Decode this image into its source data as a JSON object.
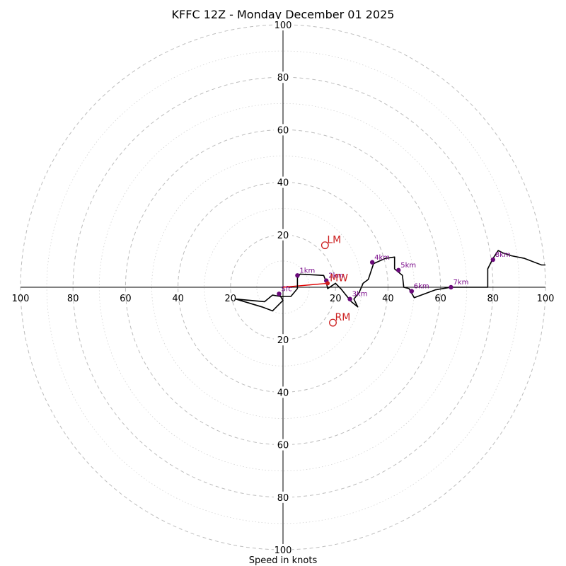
{
  "chart_data": {
    "type": "hodograph",
    "title": "KFFC 12Z - Monday December 01 2025",
    "xlabel": "Speed in knots",
    "range": [
      -100,
      100
    ],
    "ring_major_step": 20,
    "ring_minor_step": 10,
    "tick_labels": {
      "right": [
        "20",
        "40",
        "60",
        "80",
        "100"
      ],
      "left": [
        "20",
        "40",
        "60",
        "80",
        "100"
      ],
      "up": [
        "20",
        "40",
        "60",
        "80",
        "100"
      ],
      "down": [
        "20",
        "40",
        "60",
        "80",
        "100"
      ]
    },
    "trace": [
      [
        -1.5,
        -2.5
      ],
      [
        0,
        -5
      ],
      [
        -4,
        -9
      ],
      [
        -8,
        -7.5
      ],
      [
        -18,
        -4.5
      ],
      [
        -7,
        -5.5
      ],
      [
        -4,
        -3
      ],
      [
        -1,
        -3.5
      ],
      [
        3,
        -3.5
      ],
      [
        5.5,
        -0.5
      ],
      [
        5.5,
        3.5
      ],
      [
        6.5,
        5
      ],
      [
        15.5,
        4.5
      ],
      [
        16.5,
        2
      ],
      [
        17,
        -0.5
      ],
      [
        20,
        1.5
      ],
      [
        22,
        -0.5
      ],
      [
        26,
        -5.5
      ],
      [
        28.5,
        -7.5
      ],
      [
        27,
        -4.5
      ],
      [
        29,
        -2
      ],
      [
        30.5,
        1.5
      ],
      [
        32.5,
        3
      ],
      [
        33.5,
        6
      ],
      [
        34.5,
        9
      ],
      [
        39,
        11
      ],
      [
        42.5,
        11.5
      ],
      [
        42.5,
        7
      ],
      [
        45.5,
        4.5
      ],
      [
        46,
        0
      ],
      [
        48,
        -0.5
      ],
      [
        50,
        -4
      ],
      [
        58,
        -1
      ],
      [
        64,
        0
      ],
      [
        68,
        0
      ],
      [
        78,
        0
      ],
      [
        78,
        7
      ],
      [
        80,
        11
      ],
      [
        82,
        14
      ],
      [
        84,
        13
      ],
      [
        87,
        12
      ],
      [
        92,
        11
      ],
      [
        98.5,
        8.5
      ],
      [
        100,
        8.5
      ]
    ],
    "height_markers": [
      {
        "label": "Sfc",
        "u": -1.5,
        "v": -2.5
      },
      {
        "label": "1km",
        "u": 5.5,
        "v": 4.5
      },
      {
        "label": "2km",
        "u": 16.5,
        "v": 2.5
      },
      {
        "label": "3km",
        "u": 25.5,
        "v": -4.5
      },
      {
        "label": "4km",
        "u": 34,
        "v": 9.5
      },
      {
        "label": "5km",
        "u": 44,
        "v": 6.5
      },
      {
        "label": "6km",
        "u": 49,
        "v": -1.5
      },
      {
        "label": "7km",
        "u": 64,
        "v": 0
      },
      {
        "label": "8km",
        "u": 80,
        "v": 10.5
      }
    ],
    "storm_motion": [
      {
        "label": "LM",
        "u": 16,
        "v": 16
      },
      {
        "label": "MW",
        "u": 17,
        "v": 1.5
      },
      {
        "label": "RM",
        "u": 19,
        "v": -13.5
      }
    ],
    "shear_vector": {
      "from": [
        0,
        0
      ],
      "to": [
        17,
        1.5
      ]
    },
    "colors": {
      "trace": "#000000",
      "height": "#6a0a7a",
      "storm": "#cc1f1f",
      "shear": "#e00000"
    }
  }
}
